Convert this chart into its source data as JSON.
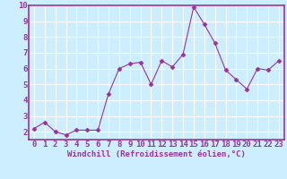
{
  "x": [
    0,
    1,
    2,
    3,
    4,
    5,
    6,
    7,
    8,
    9,
    10,
    11,
    12,
    13,
    14,
    15,
    16,
    17,
    18,
    19,
    20,
    21,
    22,
    23
  ],
  "y": [
    2.2,
    2.6,
    2.0,
    1.8,
    2.1,
    2.1,
    2.1,
    4.4,
    6.0,
    6.3,
    6.4,
    5.0,
    6.5,
    6.1,
    6.9,
    9.9,
    8.8,
    7.6,
    5.9,
    5.3,
    4.7,
    6.0,
    5.9,
    6.5
  ],
  "xlabel": "Windchill (Refroidissement éolien,°C)",
  "xlim_min": -0.5,
  "xlim_max": 23.5,
  "ylim_min": 1.5,
  "ylim_max": 10.0,
  "yticks": [
    2,
    3,
    4,
    5,
    6,
    7,
    8,
    9,
    10
  ],
  "xticks": [
    0,
    1,
    2,
    3,
    4,
    5,
    6,
    7,
    8,
    9,
    10,
    11,
    12,
    13,
    14,
    15,
    16,
    17,
    18,
    19,
    20,
    21,
    22,
    23
  ],
  "line_color": "#993399",
  "marker": "D",
  "marker_size": 2.5,
  "bg_color": "#cceeff",
  "grid_color": "#ffffff",
  "spine_color": "#993399",
  "xlabel_fontsize": 6.5,
  "tick_fontsize": 6.5
}
